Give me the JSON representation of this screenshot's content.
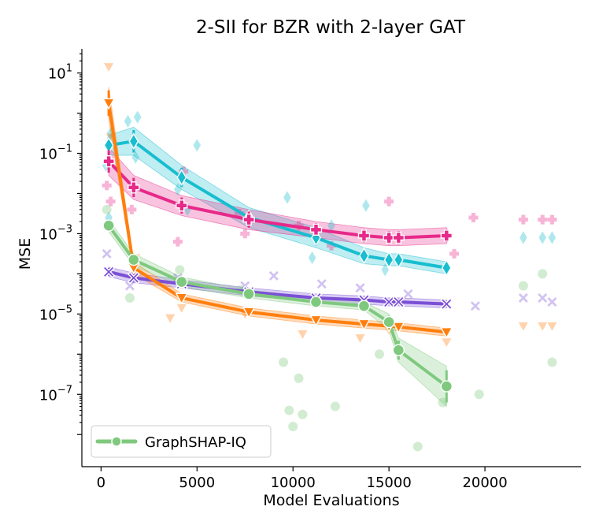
{
  "chart_data": {
    "type": "line",
    "title": "2-SII for BZR with 2-layer GAT",
    "xlabel": "Model Evaluations",
    "ylabel": "MSE",
    "yscale": "log",
    "xlim": [
      -1000,
      25000
    ],
    "ylim_log10": [
      -8.8,
      1.6
    ],
    "xticks": [
      0,
      5000,
      10000,
      15000,
      20000
    ],
    "xtick_labels": [
      "0",
      "5000",
      "10000",
      "15000",
      "20000"
    ],
    "yticks_log10": [
      1,
      -1,
      -3,
      -5,
      -7
    ],
    "ytick_labels": [
      {
        "base": "10",
        "exp": "1"
      },
      {
        "base": "10",
        "exp": "−1"
      },
      {
        "base": "10",
        "exp": "−3"
      },
      {
        "base": "10",
        "exp": "−5"
      },
      {
        "base": "10",
        "exp": "−7"
      }
    ],
    "legend": {
      "position": "lower-left",
      "entries": [
        "GraphSHAP-IQ"
      ]
    },
    "series": [
      {
        "name": "cyan-diamond",
        "color": "#17becf",
        "marker": "diamond",
        "x": [
          400,
          1700,
          4200,
          7700,
          11200,
          13700,
          15000,
          15500,
          18000
        ],
        "y_log10": [
          -0.8,
          -0.7,
          -1.6,
          -2.6,
          -3.1,
          -3.55,
          -3.65,
          -3.65,
          -3.85
        ],
        "band_log10": [
          0.25,
          0.35,
          0.3,
          0.25,
          0.25,
          0.2,
          0.15,
          0.15,
          0.15
        ],
        "scatter_x": [
          250,
          400,
          500,
          1400,
          1800,
          1900,
          4000,
          4500,
          5000,
          9700,
          11000,
          12000,
          13800,
          14800,
          22000,
          23000,
          23500
        ],
        "scatter_y_log10": [
          -1.3,
          -2.6,
          -0.5,
          -0.2,
          -1.1,
          -0.1,
          -1.9,
          -2.4,
          -0.8,
          -2.1,
          -3.6,
          -2.8,
          -2.3,
          -3.9,
          -3.1,
          -3.1,
          -3.1
        ]
      },
      {
        "name": "magenta-plus",
        "color": "#e7298a",
        "marker": "plus",
        "x": [
          400,
          1700,
          4200,
          7700,
          11200,
          13700,
          15000,
          15500,
          18000
        ],
        "y_log10": [
          -1.2,
          -1.85,
          -2.3,
          -2.65,
          -2.9,
          -3.05,
          -3.1,
          -3.1,
          -3.05
        ],
        "band_log10": [
          0.35,
          0.3,
          0.25,
          0.25,
          0.2,
          0.2,
          0.2,
          0.2,
          0.2
        ],
        "scatter_x": [
          300,
          500,
          1600,
          4000,
          4300,
          7200,
          7500,
          10300,
          12000,
          15000,
          18400,
          19400,
          22000,
          23000,
          23500
        ],
        "scatter_y_log10": [
          -1.8,
          -2.2,
          -2.4,
          -3.2,
          -1.45,
          -2.5,
          -3.0,
          -2.8,
          -3.3,
          -2.2,
          -3.5,
          -2.6,
          -2.65,
          -2.65,
          -2.65
        ]
      },
      {
        "name": "purple-x",
        "color": "#7b4fd6",
        "marker": "x",
        "x": [
          400,
          1700,
          4200,
          7700,
          11200,
          13700,
          15000,
          15500,
          18000
        ],
        "y_log10": [
          -3.95,
          -4.1,
          -4.25,
          -4.45,
          -4.6,
          -4.65,
          -4.7,
          -4.7,
          -4.75
        ],
        "band_log10": [
          0.12,
          0.12,
          0.1,
          0.1,
          0.1,
          0.1,
          0.1,
          0.1,
          0.1
        ],
        "scatter_x": [
          300,
          1500,
          4000,
          7500,
          9000,
          11500,
          13500,
          16000,
          19500,
          22000,
          23000,
          23500
        ],
        "scatter_y_log10": [
          -3.5,
          -4.3,
          -4.1,
          -4.3,
          -4.05,
          -4.25,
          -4.35,
          -4.5,
          -4.8,
          -4.6,
          -4.6,
          -4.7
        ]
      },
      {
        "name": "orange-triangle",
        "color": "#ff7f0e",
        "marker": "triangle",
        "x": [
          400,
          1700,
          4200,
          7700,
          11200,
          13700,
          15000,
          15500,
          18000
        ],
        "y_log10": [
          0.25,
          -3.85,
          -4.6,
          -4.95,
          -5.15,
          -5.25,
          -5.3,
          -5.32,
          -5.45
        ],
        "band_log10": [
          0.4,
          0.15,
          0.1,
          0.1,
          0.1,
          0.1,
          0.1,
          0.1,
          0.1
        ],
        "scatter_x": [
          400,
          500,
          1800,
          3600,
          4200,
          7500,
          10500,
          13500,
          15000,
          18000,
          22000,
          23000,
          23500
        ],
        "scatter_y_log10": [
          1.15,
          -0.6,
          -3.6,
          -5.1,
          -4.85,
          -5.0,
          -5.5,
          -5.6,
          -5.4,
          -5.7,
          -5.3,
          -5.3,
          -5.3
        ]
      },
      {
        "name": "GraphSHAP-IQ",
        "color": "#7fc97f",
        "marker": "circle",
        "x": [
          400,
          1700,
          4200,
          7700,
          11200,
          13700,
          15000,
          15500,
          18000
        ],
        "y_log10": [
          -2.8,
          -3.65,
          -4.2,
          -4.5,
          -4.7,
          -4.8,
          -5.2,
          -5.9,
          -6.8
        ],
        "band_log10": [
          0.15,
          0.15,
          0.12,
          0.1,
          0.1,
          0.1,
          0.2,
          0.3,
          0.5
        ],
        "scatter_x": [
          300,
          1500,
          4100,
          7300,
          9500,
          9800,
          10000,
          10300,
          10500,
          12200,
          14500,
          16500,
          17800,
          19700,
          22000,
          23000,
          23500
        ],
        "scatter_y_log10": [
          -2.4,
          -4.6,
          -3.9,
          -4.4,
          -6.2,
          -7.4,
          -7.8,
          -6.6,
          -7.5,
          -7.3,
          -6.0,
          -8.3,
          -7.2,
          -7.0,
          -4.3,
          -4.0,
          -6.2
        ]
      }
    ]
  }
}
